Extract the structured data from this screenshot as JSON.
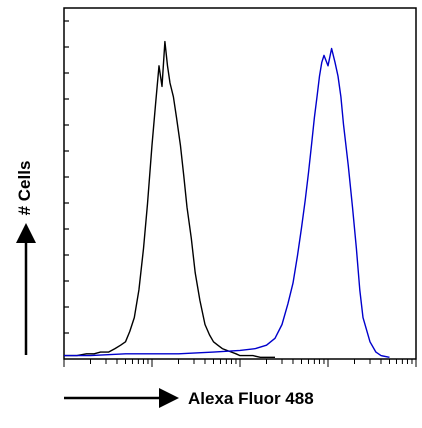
{
  "chart_data": {
    "type": "line",
    "xlabel": "Alexa Fluor 488",
    "ylabel": "# Cells",
    "x_scale": "log",
    "xlim": [
      1,
      10000
    ],
    "ylim": [
      0,
      100
    ],
    "grid": false,
    "legend": "none",
    "series": [
      {
        "color": "#000000",
        "x": [
          1.0,
          1.4,
          1.8,
          2.2,
          2.6,
          3.2,
          3.8,
          4.4,
          5.0,
          5.6,
          6.3,
          7.1,
          8.0,
          8.9,
          10.0,
          11.0,
          12.0,
          13.0,
          14.0,
          15.0,
          16.0,
          17.5,
          19.0,
          21.0,
          23.0,
          25.0,
          28.0,
          31.0,
          35.0,
          40.0,
          45.0,
          50.0,
          56.0,
          63.0,
          71.0,
          80.0,
          90.0,
          100.0,
          120.0,
          140.0,
          170.0,
          200.0,
          250.0
        ],
        "y": [
          1,
          1,
          1.5,
          1.5,
          2,
          2,
          3,
          4,
          5,
          8,
          12,
          20,
          32,
          45,
          62,
          74,
          85,
          79,
          92,
          85,
          80,
          76,
          70,
          62,
          53,
          44,
          35,
          25,
          17,
          10,
          7,
          5,
          4,
          3,
          2.5,
          2,
          1.5,
          1,
          1,
          1,
          0.5,
          0.5,
          0.5
        ]
      },
      {
        "color": "#0000cc",
        "x": [
          1.0,
          2.0,
          5.0,
          10.0,
          20.0,
          50.0,
          100.0,
          150.0,
          200.0,
          250.0,
          300.0,
          350.0,
          400.0,
          450.0,
          500.0,
          550.0,
          600.0,
          650.0,
          700.0,
          750.0,
          800.0,
          850.0,
          900.0,
          1000.0,
          1100.0,
          1200.0,
          1300.0,
          1400.0,
          1500.0,
          1700.0,
          1900.0,
          2100.0,
          2300.0,
          2500.0,
          3000.0,
          3500.0,
          4000.0,
          5000.0
        ],
        "y": [
          1,
          1,
          1.5,
          1.5,
          1.5,
          2,
          2.5,
          3,
          4,
          6,
          10,
          16,
          22,
          30,
          38,
          46,
          54,
          62,
          70,
          76,
          82,
          86,
          88,
          85,
          90,
          86,
          82,
          76,
          68,
          56,
          44,
          32,
          20,
          12,
          5,
          2,
          1,
          0.5
        ]
      }
    ]
  }
}
